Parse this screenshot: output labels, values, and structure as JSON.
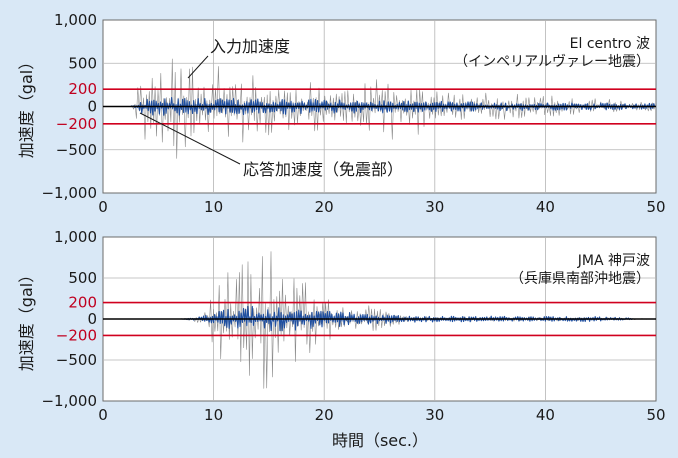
{
  "chart_data": [
    {
      "type": "line",
      "title": "",
      "wave_name": "El centro 波",
      "wave_sub": "（インペリアルヴァレー地震）",
      "xlabel": "",
      "ylabel": "加速度（gal）",
      "xlim": [
        0,
        50
      ],
      "ylim": [
        -1000,
        1000
      ],
      "x_ticks": [
        "0",
        "10",
        "20",
        "30",
        "40",
        "50"
      ],
      "y_ticks": [
        "1,000",
        "500",
        "0",
        "−500",
        "−1,000"
      ],
      "red_ticks": [
        "200",
        "−200"
      ],
      "reference_lines": [
        200,
        -200
      ],
      "grid": true,
      "annotations": [
        "入力加速度",
        "応答加速度（免震部）"
      ],
      "series": [
        {
          "name": "入力加速度",
          "color": "#8a8a8a",
          "start": 2.5,
          "end": 50,
          "envelope": [
            [
              2.5,
              0
            ],
            [
              3.2,
              300
            ],
            [
              4,
              620
            ],
            [
              5.5,
              600
            ],
            [
              7,
              640
            ],
            [
              8.5,
              450
            ],
            [
              10,
              430
            ],
            [
              11.5,
              560
            ],
            [
              13,
              380
            ],
            [
              15,
              350
            ],
            [
              17,
              310
            ],
            [
              20,
              320
            ],
            [
              22,
              280
            ],
            [
              24,
              280
            ],
            [
              26,
              380
            ],
            [
              27,
              400
            ],
            [
              29,
              310
            ],
            [
              30,
              200
            ],
            [
              32,
              150
            ],
            [
              35,
              160
            ],
            [
              40,
              130
            ],
            [
              45,
              90
            ],
            [
              50,
              50
            ]
          ]
        },
        {
          "name": "応答加速度（免震部）",
          "color": "#1f4fa0",
          "start": 2.5,
          "end": 50,
          "envelope": [
            [
              2.5,
              0
            ],
            [
              3.5,
              80
            ],
            [
              5,
              110
            ],
            [
              8,
              100
            ],
            [
              12,
              95
            ],
            [
              15,
              95
            ],
            [
              20,
              80
            ],
            [
              25,
              75
            ],
            [
              30,
              60
            ],
            [
              35,
              50
            ],
            [
              40,
              45
            ],
            [
              45,
              40
            ],
            [
              50,
              35
            ]
          ]
        }
      ]
    },
    {
      "type": "line",
      "title": "",
      "wave_name": "JMA 神戸波",
      "wave_sub": "（兵庫県南部沖地震）",
      "xlabel": "時間（sec.）",
      "ylabel": "加速度（gal）",
      "xlim": [
        0,
        50
      ],
      "ylim": [
        -1000,
        1000
      ],
      "x_ticks": [
        "0",
        "10",
        "20",
        "30",
        "40",
        "50"
      ],
      "y_ticks": [
        "1,000",
        "500",
        "0",
        "−500",
        "−1,000"
      ],
      "red_ticks": [
        "200",
        "−200"
      ],
      "reference_lines": [
        200,
        -200
      ],
      "grid": true,
      "annotations": [],
      "series": [
        {
          "name": "入力加速度",
          "color": "#8a8a8a",
          "start": 7,
          "end": 50,
          "envelope": [
            [
              7,
              0
            ],
            [
              8.5,
              40
            ],
            [
              9.5,
              150
            ],
            [
              10,
              450
            ],
            [
              11,
              580
            ],
            [
              12,
              650
            ],
            [
              13,
              750
            ],
            [
              14,
              820
            ],
            [
              14.5,
              1000
            ],
            [
              15.5,
              820
            ],
            [
              16.5,
              600
            ],
            [
              18,
              500
            ],
            [
              19,
              400
            ],
            [
              20,
              300
            ],
            [
              22,
              220
            ],
            [
              24,
              180
            ],
            [
              26,
              100
            ],
            [
              28,
              40
            ],
            [
              30,
              30
            ],
            [
              35,
              30
            ],
            [
              40,
              25
            ],
            [
              45,
              25
            ],
            [
              48,
              10
            ],
            [
              50,
              0
            ]
          ]
        },
        {
          "name": "応答加速度（免震部）",
          "color": "#1f4fa0",
          "start": 7,
          "end": 48,
          "envelope": [
            [
              7,
              0
            ],
            [
              8.5,
              20
            ],
            [
              10,
              80
            ],
            [
              11,
              130
            ],
            [
              13,
              160
            ],
            [
              15,
              150
            ],
            [
              17,
              140
            ],
            [
              19,
              120
            ],
            [
              21,
              100
            ],
            [
              23,
              70
            ],
            [
              25,
              60
            ],
            [
              27,
              40
            ],
            [
              30,
              35
            ],
            [
              35,
              35
            ],
            [
              40,
              30
            ],
            [
              45,
              30
            ],
            [
              48,
              10
            ]
          ]
        }
      ]
    }
  ],
  "colors": {
    "background": "#d9e8f6",
    "plot_bg": "#ffffff",
    "grid": "#b4b4b4",
    "reference_line": "#d0001f",
    "zero_line": "#000000"
  }
}
